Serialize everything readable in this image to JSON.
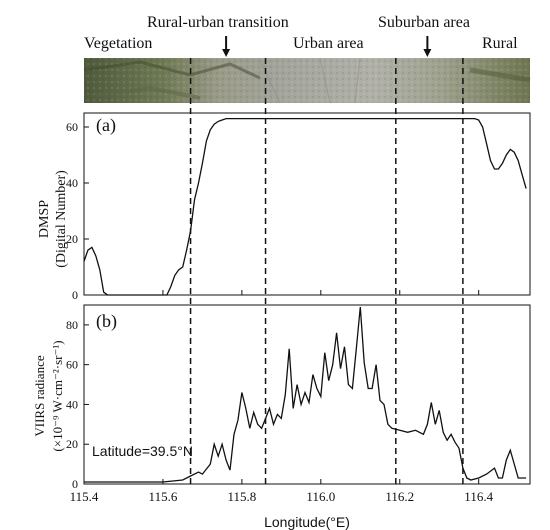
{
  "regions": {
    "vegetation": "Vegetation",
    "rural_urban": "Rural-urban transition",
    "urban": "Urban area",
    "suburban": "Suburban area",
    "rural": "Rural"
  },
  "colors": {
    "line": "#111111",
    "imagery_green": "#6f7a55",
    "imagery_urban": "#a3a59c"
  },
  "chart_data": [
    {
      "type": "line",
      "panel_label": "(a)",
      "ylabel_line1": "DMSP",
      "ylabel_line2": "(Digital Number)",
      "xlim": [
        115.4,
        116.53
      ],
      "ylim": [
        0,
        65
      ],
      "yticks": [
        "0",
        "20",
        "40",
        "60"
      ],
      "grid": false,
      "series": [
        {
          "x": [
            115.4,
            115.41,
            115.42,
            115.43,
            115.44,
            115.45,
            115.46,
            115.47,
            115.5,
            115.55,
            115.6,
            115.61,
            115.62,
            115.63,
            115.64,
            115.65,
            115.66,
            115.67,
            115.68,
            115.69,
            115.7,
            115.71,
            115.72,
            115.73,
            115.74,
            115.75,
            115.76,
            115.8,
            115.9,
            116.0,
            116.1,
            116.2,
            116.3,
            116.35,
            116.39,
            116.4,
            116.41,
            116.42,
            116.43,
            116.44,
            116.45,
            116.46,
            116.47,
            116.48,
            116.49,
            116.5,
            116.51,
            116.52
          ],
          "values": [
            12,
            16,
            17,
            14,
            9,
            1,
            0,
            0,
            0,
            0,
            0,
            0,
            3,
            7,
            9,
            10,
            16,
            23,
            34,
            40,
            47,
            55,
            59,
            61,
            62,
            62.5,
            63,
            63,
            63,
            63,
            63,
            63,
            63,
            63,
            63,
            62.5,
            60,
            54,
            48,
            45,
            45,
            47,
            50,
            52,
            51,
            48,
            43,
            38
          ]
        }
      ]
    },
    {
      "type": "line",
      "panel_label": "(b)",
      "ylabel_line1": "VIIRS radiance",
      "ylabel_line2": "(×10⁻⁹ W·cm⁻²·sr⁻¹)",
      "annotation": "Latitude=39.5°N",
      "xlabel": "Longitude(°E)",
      "xlim": [
        115.4,
        116.53
      ],
      "ylim": [
        0,
        90
      ],
      "yticks": [
        "0",
        "20",
        "40",
        "60",
        "80"
      ],
      "xticks": [
        "115.4",
        "115.6",
        "115.8",
        "116.0",
        "116.2",
        "116.4"
      ],
      "grid": false,
      "series": [
        {
          "x": [
            115.4,
            115.5,
            115.6,
            115.65,
            115.67,
            115.69,
            115.7,
            115.72,
            115.73,
            115.74,
            115.75,
            115.76,
            115.77,
            115.78,
            115.79,
            115.8,
            115.81,
            115.82,
            115.83,
            115.84,
            115.85,
            115.86,
            115.87,
            115.88,
            115.89,
            115.9,
            115.91,
            115.92,
            115.93,
            115.94,
            115.95,
            115.96,
            115.97,
            115.98,
            115.99,
            116.0,
            116.01,
            116.02,
            116.03,
            116.04,
            116.05,
            116.06,
            116.07,
            116.08,
            116.09,
            116.1,
            116.11,
            116.12,
            116.13,
            116.14,
            116.15,
            116.16,
            116.17,
            116.18,
            116.2,
            116.22,
            116.24,
            116.26,
            116.27,
            116.28,
            116.29,
            116.3,
            116.31,
            116.32,
            116.33,
            116.34,
            116.35,
            116.36,
            116.37,
            116.38,
            116.4,
            116.42,
            116.44,
            116.45,
            116.46,
            116.47,
            116.48,
            116.5,
            116.52
          ],
          "values": [
            1,
            1,
            1,
            2,
            4,
            6,
            5,
            10,
            20,
            14,
            20,
            12,
            7,
            25,
            32,
            46,
            38,
            28,
            36,
            30,
            28,
            33,
            38,
            30,
            35,
            33,
            45,
            68,
            38,
            50,
            40,
            46,
            41,
            55,
            48,
            44,
            66,
            52,
            60,
            76,
            58,
            69,
            50,
            48,
            68,
            89,
            61,
            48,
            48,
            60,
            42,
            40,
            30,
            28,
            27,
            26,
            27,
            25,
            30,
            41,
            30,
            37,
            26,
            22,
            25,
            21,
            18,
            8,
            3,
            2,
            3,
            5,
            8,
            3,
            3,
            12,
            17,
            3,
            3
          ]
        }
      ]
    }
  ],
  "dividers_x": [
    115.67,
    115.86,
    116.19,
    116.36
  ],
  "suburb_arrow_x": 116.27,
  "transition_arrow_x": 115.76
}
